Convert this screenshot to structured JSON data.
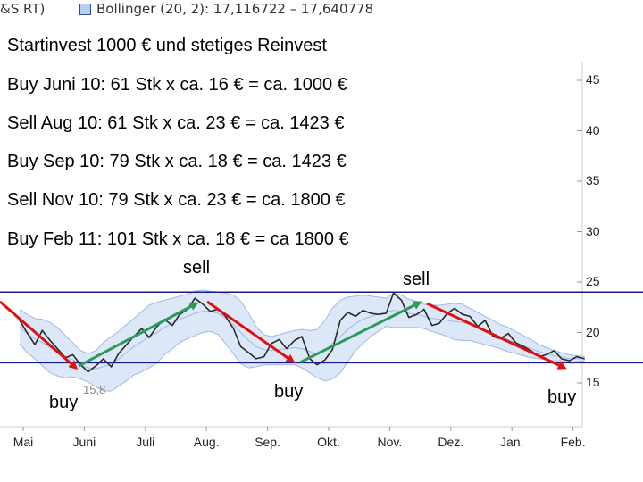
{
  "legend": {
    "series_a": "&S RT)",
    "series_b": "Bollinger (20, 2): 17,116722 – 17,640778"
  },
  "notes": [
    "Startinvest 1000 € und stetiges Reinvest",
    "Buy Juni 10: 61 Stk x ca. 16 € = ca. 1000 €",
    "Sell Aug 10: 61 Stk x ca. 23 € = ca. 1423 €",
    "Buy Sep 10: 79 Stk x ca. 18 € = ca. 1423 €",
    "Sell Nov 10: 79 Stk x ca. 23 € = ca. 1800 €",
    "Buy Feb 11: 101 Stk x ca. 18 € = ca 1800 €"
  ],
  "annotations": {
    "sell_1": "sell",
    "sell_2": "sell",
    "buy_1": "buy",
    "buy_2": "buy",
    "buy_3": "buy",
    "low_label": "15,8"
  },
  "colors": {
    "price_line": "#2a2a2a",
    "band_fill": "#dce8f8",
    "band_line": "#9fb9e2",
    "channel_line": "#1a1a8c",
    "down_arrow": "#e01010",
    "up_arrow": "#2e9a5a",
    "grid": "#e6e6e6"
  },
  "chart_data": {
    "type": "line",
    "title": "",
    "xlabel": "",
    "ylabel": "",
    "x_tick_labels": [
      "Mai",
      "Juni",
      "Juli",
      "Aug.",
      "Sep.",
      "Okt.",
      "Nov.",
      "Dez.",
      "Jan.",
      "Feb."
    ],
    "y_ticks": [
      15,
      20,
      25,
      30,
      35,
      40,
      45
    ],
    "ylim": [
      14.5,
      47
    ],
    "grid": false,
    "legend_position": "top-left",
    "x": [
      0,
      0.12,
      0.25,
      0.37,
      0.5,
      0.62,
      0.75,
      0.87,
      1,
      1.12,
      1.25,
      1.37,
      1.5,
      1.62,
      1.75,
      1.87,
      2,
      2.12,
      2.25,
      2.37,
      2.5,
      2.62,
      2.75,
      2.87,
      3,
      3.12,
      3.25,
      3.37,
      3.5,
      3.62,
      3.75,
      3.87,
      4,
      4.12,
      4.25,
      4.37,
      4.5,
      4.62,
      4.75,
      4.87,
      5,
      5.12,
      5.25,
      5.37,
      5.5,
      5.62,
      5.75,
      5.87,
      6,
      6.12,
      6.25,
      6.37,
      6.5,
      6.62,
      6.75,
      6.87,
      7,
      7.12,
      7.25,
      7.37,
      7.5,
      7.62,
      7.75,
      7.87,
      8,
      8.12,
      8.25,
      8.37,
      8.5,
      8.62,
      8.75,
      8.87,
      9,
      9.12,
      9.25
    ],
    "series": [
      {
        "values": [
          21.2,
          20.0,
          18.8,
          20.2,
          19.2,
          18.4,
          17.5,
          17.8,
          16.8,
          16.1,
          16.7,
          17.4,
          16.6,
          17.9,
          18.8,
          19.6,
          20.4,
          19.5,
          20.6,
          21.3,
          20.7,
          21.8,
          22.3,
          23.4,
          22.8,
          22.1,
          22.3,
          21.6,
          20.4,
          18.6,
          18.0,
          17.4,
          17.6,
          18.9,
          19.3,
          18.4,
          19.2,
          19.6,
          17.4,
          16.8,
          17.3,
          18.3,
          21.2,
          22.0,
          21.6,
          22.2,
          21.9,
          21.8,
          21.9,
          23.9,
          23.2,
          21.5,
          21.8,
          22.3,
          20.7,
          20.9,
          21.9,
          22.4,
          21.8,
          21.6,
          20.6,
          21.2,
          19.6,
          19.4,
          19.9,
          19.0,
          18.6,
          18.2,
          17.6,
          17.8,
          18.2,
          17.4,
          17.2,
          17.6,
          17.4
        ]
      },
      {
        "values": [
          20.6,
          19.9,
          19.4,
          19.0,
          18.5,
          18.1,
          17.6,
          17.3,
          16.8,
          16.5,
          16.4,
          16.6,
          16.9,
          17.4,
          18.0,
          18.6,
          19.1,
          19.6,
          20.0,
          20.5,
          20.9,
          21.3,
          21.6,
          21.9,
          22.1,
          22.1,
          21.9,
          21.4,
          20.8,
          20.0,
          19.2,
          18.6,
          18.3,
          18.2,
          18.3,
          18.4,
          18.5,
          18.4,
          18.1,
          17.9,
          18.2,
          18.9,
          19.6,
          20.3,
          20.9,
          21.3,
          21.6,
          21.8,
          22.0,
          22.2,
          22.1,
          21.9,
          21.8,
          21.6,
          21.4,
          21.3,
          21.2,
          21.1,
          21.0,
          20.8,
          20.5,
          20.2,
          19.9,
          19.6,
          19.3,
          19.0,
          18.7,
          18.4,
          18.1,
          17.9,
          17.7,
          17.6,
          17.4,
          17.4,
          17.4
        ]
      },
      {
        "values": [
          22.3,
          21.8,
          21.4,
          21.3,
          21.0,
          20.5,
          19.7,
          19.0,
          18.2,
          17.9,
          18.2,
          19.0,
          19.6,
          20.1,
          20.8,
          21.4,
          22.1,
          22.7,
          23.0,
          23.2,
          23.4,
          23.6,
          23.8,
          24.1,
          24.2,
          24.1,
          24.0,
          23.9,
          23.7,
          23.1,
          21.9,
          20.6,
          19.8,
          19.6,
          19.8,
          20.0,
          20.2,
          20.3,
          20.2,
          20.3,
          21.2,
          22.4,
          23.2,
          23.5,
          23.6,
          23.7,
          23.6,
          23.5,
          23.4,
          23.9,
          23.7,
          23.3,
          23.1,
          22.8,
          22.7,
          22.7,
          22.8,
          22.9,
          22.8,
          22.4,
          22.0,
          21.6,
          21.2,
          20.8,
          20.5,
          20.1,
          19.7,
          19.3,
          18.8,
          18.5,
          18.2,
          18.0,
          17.8,
          17.7,
          17.6
        ]
      },
      {
        "values": [
          18.9,
          18.0,
          17.4,
          16.7,
          16.0,
          15.7,
          15.5,
          15.6,
          15.4,
          15.1,
          14.6,
          14.2,
          14.2,
          14.7,
          15.2,
          15.8,
          16.1,
          16.5,
          17.0,
          17.8,
          18.4,
          19.0,
          19.4,
          19.7,
          20.0,
          20.1,
          19.8,
          18.9,
          17.9,
          16.9,
          16.5,
          16.6,
          16.8,
          16.8,
          16.8,
          16.8,
          16.8,
          16.5,
          16.0,
          15.5,
          15.2,
          15.4,
          16.0,
          17.1,
          18.2,
          18.9,
          19.6,
          20.1,
          20.6,
          20.5,
          20.5,
          20.5,
          20.5,
          20.4,
          20.1,
          19.9,
          19.6,
          19.3,
          19.2,
          19.2,
          19.0,
          18.8,
          18.6,
          18.4,
          18.1,
          17.9,
          17.7,
          17.5,
          17.4,
          17.3,
          17.2,
          17.2,
          17.0,
          17.1,
          17.2
        ]
      }
    ],
    "channel_levels": [
      24,
      17
    ]
  }
}
